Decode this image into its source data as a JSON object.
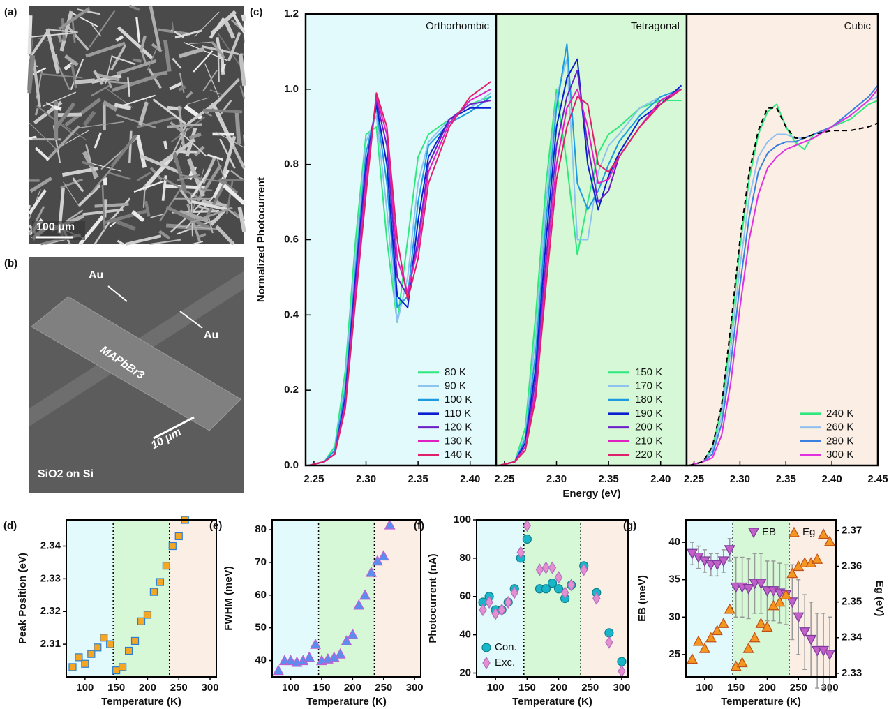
{
  "images": [
    {
      "label": "(a)",
      "scale_bar": "100 μm"
    },
    {
      "label": "(b)",
      "annotations": [
        "Au",
        "Au",
        "MAPbBr3",
        "10 μm",
        "SiO2 on Si"
      ]
    }
  ],
  "chart_data": [
    {
      "type": "line",
      "label": "(c)",
      "ylabel": "Normalized Photocurrent",
      "xlabel": "Energy (eV)",
      "ylim": [
        0,
        1.2
      ],
      "yticks": [
        {
          "value": 0,
          "label": "0.0"
        },
        0.2,
        0.4,
        0.6,
        0.8,
        {
          "value": 1,
          "label": "1.0"
        },
        1.2
      ],
      "panels": [
        {
          "title": "Orthorhombic",
          "background": "#e2fafb",
          "xlim": [
            2.242,
            2.425
          ],
          "xticks": [
            2.25,
            {
              "value": 2.3,
              "label": "2.30"
            },
            2.35,
            {
              "value": 2.4,
              "label": "2.40"
            }
          ],
          "x": [
            2.245,
            2.26,
            2.27,
            2.28,
            2.29,
            2.3,
            2.31,
            2.32,
            2.33,
            2.34,
            2.35,
            2.36,
            2.38,
            2.4,
            2.42
          ],
          "series": [
            {
              "name": "80 K",
              "color": "#2ee87e",
              "values": [
                0,
                0.01,
                0.05,
                0.25,
                0.6,
                0.88,
                0.9,
                0.6,
                0.38,
                0.6,
                0.82,
                0.88,
                0.92,
                0.96,
                0.98
              ]
            },
            {
              "name": "90 K",
              "color": "#8ec3f0",
              "values": [
                0,
                0.01,
                0.04,
                0.22,
                0.56,
                0.86,
                0.93,
                0.68,
                0.38,
                0.5,
                0.75,
                0.86,
                0.92,
                0.95,
                0.99
              ]
            },
            {
              "name": "100 K",
              "color": "#1e9be0",
              "values": [
                0,
                0.01,
                0.04,
                0.2,
                0.52,
                0.83,
                0.95,
                0.75,
                0.42,
                0.45,
                0.7,
                0.85,
                0.91,
                0.94,
                0.98
              ]
            },
            {
              "name": "110 K",
              "color": "#0a1fd0",
              "values": [
                0,
                0.01,
                0.03,
                0.18,
                0.5,
                0.8,
                0.96,
                0.8,
                0.45,
                0.42,
                0.65,
                0.82,
                0.92,
                0.95,
                0.95
              ]
            },
            {
              "name": "120 K",
              "color": "#6a1fc8",
              "values": [
                0,
                0.01,
                0.03,
                0.17,
                0.48,
                0.78,
                0.97,
                0.85,
                0.5,
                0.45,
                0.6,
                0.8,
                0.92,
                0.96,
                0.97
              ]
            },
            {
              "name": "130 K",
              "color": "#e020c0",
              "values": [
                0,
                0.01,
                0.03,
                0.16,
                0.46,
                0.75,
                0.98,
                0.88,
                0.55,
                0.46,
                0.58,
                0.78,
                0.91,
                0.97,
                1.0
              ]
            },
            {
              "name": "140 K",
              "color": "#e0206a",
              "values": [
                0,
                0.01,
                0.03,
                0.15,
                0.44,
                0.72,
                0.99,
                0.9,
                0.6,
                0.44,
                0.55,
                0.75,
                0.9,
                0.98,
                1.02
              ]
            }
          ]
        },
        {
          "title": "Tetragonal",
          "background": "#d6f8d6",
          "xlim": [
            2.242,
            2.425
          ],
          "xticks": [
            2.25,
            {
              "value": 2.3,
              "label": "2.30"
            },
            2.35,
            {
              "value": 2.4,
              "label": "2.40"
            }
          ],
          "x": [
            2.245,
            2.26,
            2.27,
            2.28,
            2.29,
            2.3,
            2.31,
            2.32,
            2.33,
            2.34,
            2.35,
            2.36,
            2.38,
            2.4,
            2.42
          ],
          "series": [
            {
              "name": "150 K",
              "color": "#2ee87e",
              "values": [
                0,
                0.01,
                0.1,
                0.4,
                0.75,
                1.0,
                0.8,
                0.56,
                0.7,
                0.83,
                0.88,
                0.9,
                0.95,
                0.97,
                0.97
              ]
            },
            {
              "name": "170 K",
              "color": "#8ec3f0",
              "values": [
                0,
                0.01,
                0.08,
                0.35,
                0.7,
                0.98,
                1.08,
                0.6,
                0.6,
                0.78,
                0.85,
                0.88,
                0.95,
                0.98,
                1.0
              ]
            },
            {
              "name": "180 K",
              "color": "#1e9be0",
              "values": [
                0,
                0.01,
                0.07,
                0.3,
                0.65,
                0.95,
                1.12,
                0.75,
                0.68,
                0.73,
                0.8,
                0.86,
                0.93,
                0.98,
                1.0
              ]
            },
            {
              "name": "190 K",
              "color": "#0a1fd0",
              "values": [
                0,
                0.01,
                0.06,
                0.26,
                0.6,
                0.9,
                1.03,
                1.08,
                0.8,
                0.68,
                0.77,
                0.83,
                0.92,
                0.96,
                1.01
              ]
            },
            {
              "name": "200 K",
              "color": "#6a1fc8",
              "values": [
                0,
                0.01,
                0.05,
                0.23,
                0.55,
                0.85,
                0.98,
                1.05,
                0.85,
                0.7,
                0.73,
                0.82,
                0.9,
                0.97,
                1.0
              ]
            },
            {
              "name": "210 K",
              "color": "#e020c0",
              "values": [
                0,
                0.01,
                0.05,
                0.2,
                0.52,
                0.8,
                0.95,
                1.0,
                0.9,
                0.75,
                0.76,
                0.82,
                0.9,
                0.97,
                1.0
              ]
            },
            {
              "name": "220 K",
              "color": "#e0206a",
              "values": [
                0,
                0.01,
                0.04,
                0.18,
                0.48,
                0.76,
                0.9,
                0.98,
                0.96,
                0.8,
                0.78,
                0.82,
                0.9,
                0.96,
                1.0
              ]
            }
          ]
        },
        {
          "title": "Cubic",
          "background": "#fbeee4",
          "xlim": [
            2.242,
            2.45
          ],
          "xticks": [
            2.25,
            {
              "value": 2.3,
              "label": "2.30"
            },
            2.35,
            {
              "value": 2.4,
              "label": "2.40"
            },
            2.45
          ],
          "x": [
            2.245,
            2.26,
            2.27,
            2.28,
            2.29,
            2.3,
            2.31,
            2.32,
            2.33,
            2.34,
            2.35,
            2.36,
            2.37,
            2.38,
            2.4,
            2.42,
            2.44,
            2.45
          ],
          "series": [
            {
              "name": "240 K",
              "color": "#2ee87e",
              "values": [
                0,
                0.01,
                0.05,
                0.15,
                0.35,
                0.58,
                0.76,
                0.88,
                0.94,
                0.96,
                0.9,
                0.86,
                0.84,
                0.88,
                0.9,
                0.92,
                0.96,
                0.97
              ]
            },
            {
              "name": "260 K",
              "color": "#90c0f0",
              "values": [
                0,
                0.01,
                0.04,
                0.13,
                0.31,
                0.53,
                0.71,
                0.82,
                0.86,
                0.88,
                0.88,
                0.87,
                0.87,
                0.88,
                0.9,
                0.93,
                0.97,
                0.98
              ]
            },
            {
              "name": "280 K",
              "color": "#3a80e0",
              "values": [
                0,
                0.01,
                0.03,
                0.11,
                0.27,
                0.48,
                0.66,
                0.78,
                0.83,
                0.85,
                0.86,
                0.86,
                0.87,
                0.88,
                0.9,
                0.94,
                0.98,
                1.01
              ]
            },
            {
              "name": "300 K",
              "color": "#e030e0",
              "values": [
                0,
                0.01,
                0.02,
                0.08,
                0.22,
                0.42,
                0.6,
                0.72,
                0.79,
                0.82,
                0.84,
                0.85,
                0.86,
                0.87,
                0.9,
                0.93,
                0.97,
                1.0
              ]
            },
            {
              "color": "#000000",
              "dash": true,
              "values": [
                0,
                0.01,
                0.05,
                0.16,
                0.37,
                0.6,
                0.78,
                0.89,
                0.95,
                0.95,
                0.9,
                0.87,
                0.87,
                0.88,
                0.89,
                0.89,
                0.9,
                0.91
              ]
            }
          ]
        }
      ]
    },
    {
      "type": "scatter",
      "label": "(d)",
      "ylabel": "Peak Position (eV)",
      "xlabel": "Temperature (K)",
      "xlim": [
        70,
        310
      ],
      "xticks": [
        100,
        150,
        200,
        250,
        300
      ],
      "ylim": [
        2.3,
        2.348
      ],
      "yticks": [
        2.31,
        2.32,
        2.33,
        2.34
      ],
      "phase_boundaries": [
        145,
        235
      ],
      "region_colors": [
        "#e2fafb",
        "#d6f8d6",
        "#fbeee4"
      ],
      "x": [
        80,
        90,
        100,
        110,
        120,
        130,
        140,
        150,
        160,
        170,
        180,
        190,
        200,
        210,
        220,
        230,
        240,
        250,
        260
      ],
      "series": [
        {
          "color": "#f5a623",
          "edge": "#2a7fd4",
          "marker": "square",
          "values": [
            2.303,
            2.306,
            2.304,
            2.307,
            2.309,
            2.312,
            2.31,
            2.302,
            2.303,
            2.308,
            2.311,
            2.317,
            2.319,
            2.326,
            2.329,
            2.334,
            2.34,
            2.343,
            2.348
          ]
        }
      ]
    },
    {
      "type": "scatter",
      "label": "(e)",
      "ylabel": "FWHM (meV)",
      "xlabel": "Temperature (K)",
      "xlim": [
        70,
        310
      ],
      "xticks": [
        100,
        150,
        200,
        250,
        300
      ],
      "ylim": [
        35,
        83
      ],
      "yticks": [
        40,
        50,
        60,
        70,
        80
      ],
      "phase_boundaries": [
        145,
        235
      ],
      "region_colors": [
        "#e2fafb",
        "#d6f8d6",
        "#fbeee4"
      ],
      "x": [
        80,
        90,
        100,
        110,
        120,
        130,
        140,
        150,
        160,
        170,
        180,
        190,
        200,
        210,
        220,
        230,
        240,
        250,
        260
      ],
      "series": [
        {
          "color": "#5b8def",
          "edge": "#c060d0",
          "marker": "triangle",
          "values": [
            37,
            40,
            40,
            39.5,
            40,
            41,
            45,
            40,
            40.5,
            41,
            42,
            46,
            48,
            57,
            60,
            67,
            70.5,
            72,
            81.5
          ]
        }
      ]
    },
    {
      "type": "scatter",
      "label": "(f)",
      "ylabel": "Photocurrent (nA)",
      "xlabel": "Temperature (K)",
      "xlim": [
        70,
        310
      ],
      "xticks": [
        100,
        150,
        200,
        250,
        300
      ],
      "ylim": [
        18,
        100
      ],
      "yticks": [
        20,
        40,
        60,
        80,
        100
      ],
      "phase_boundaries": [
        145,
        235
      ],
      "region_colors": [
        "#e2fafb",
        "#d6f8d6",
        "#fbeee4"
      ],
      "legend": "lower left",
      "x": [
        80,
        90,
        100,
        110,
        120,
        130,
        140,
        150,
        170,
        180,
        190,
        200,
        210,
        220,
        240,
        260,
        280,
        300
      ],
      "series": [
        {
          "name": "Con.",
          "color": "#19b5c8",
          "edge": "#0e7f8c",
          "marker": "circle",
          "values": [
            57,
            60,
            53,
            53,
            57,
            64,
            80,
            90,
            64,
            64,
            67,
            64,
            59,
            66,
            76,
            62,
            41,
            26
          ]
        },
        {
          "name": "Exc.",
          "color": "#e58fd0",
          "edge": "#b070c0",
          "marker": "diamond",
          "values": [
            53,
            57,
            51,
            53,
            57,
            62,
            83,
            97,
            74,
            75,
            75,
            70,
            62,
            66,
            74,
            59,
            36,
            21
          ]
        }
      ]
    },
    {
      "type": "scatter",
      "label": "(g)",
      "ylabel": "EB (meV)",
      "y2label": "Eg (eV)",
      "xlabel": "Temperature (K)",
      "xlim": [
        70,
        310
      ],
      "xticks": [
        100,
        150,
        200,
        250,
        300
      ],
      "ylim": [
        22,
        43
      ],
      "yticks": [
        25,
        30,
        35,
        40
      ],
      "y2lim": [
        2.329,
        2.373
      ],
      "y2ticks": [
        2.33,
        2.34,
        2.35,
        2.36,
        2.37
      ],
      "phase_boundaries": [
        145,
        235
      ],
      "region_colors": [
        "#e2fafb",
        "#d6f8d6",
        "#fbeee4"
      ],
      "legend": "upper right",
      "x": [
        80,
        90,
        100,
        110,
        120,
        130,
        140,
        150,
        160,
        170,
        180,
        190,
        200,
        210,
        220,
        230,
        240,
        250,
        260,
        270,
        280,
        290,
        300
      ],
      "series": [
        {
          "name": "EB",
          "color": "#c25fc8",
          "edge": "#7a3a9a",
          "marker": "triangle-down",
          "values": [
            38.5,
            38,
            37.5,
            37,
            37,
            37.5,
            39,
            34,
            34,
            33.8,
            34.5,
            34.5,
            33.5,
            33.5,
            33.2,
            33,
            32,
            30,
            28,
            27,
            25.5,
            25.5,
            25
          ],
          "errors": [
            1.5,
            1.5,
            1.5,
            1.5,
            1.5,
            1.5,
            1.5,
            4,
            4,
            4,
            4,
            4,
            4,
            4,
            4,
            4,
            5,
            5,
            5,
            5,
            5,
            5,
            5
          ]
        },
        {
          "name": "Eg",
          "color": "#f5961e",
          "edge": "#c0501a",
          "marker": "triangle",
          "axis": "y2",
          "values": [
            2.334,
            2.339,
            2.337,
            2.34,
            2.342,
            2.344,
            2.348,
            2.332,
            2.333,
            2.337,
            2.34,
            2.344,
            2.343,
            2.349,
            2.35,
            2.352,
            2.358,
            2.36,
            2.361,
            2.361,
            2.362,
            2.369,
            2.367
          ]
        }
      ]
    }
  ]
}
